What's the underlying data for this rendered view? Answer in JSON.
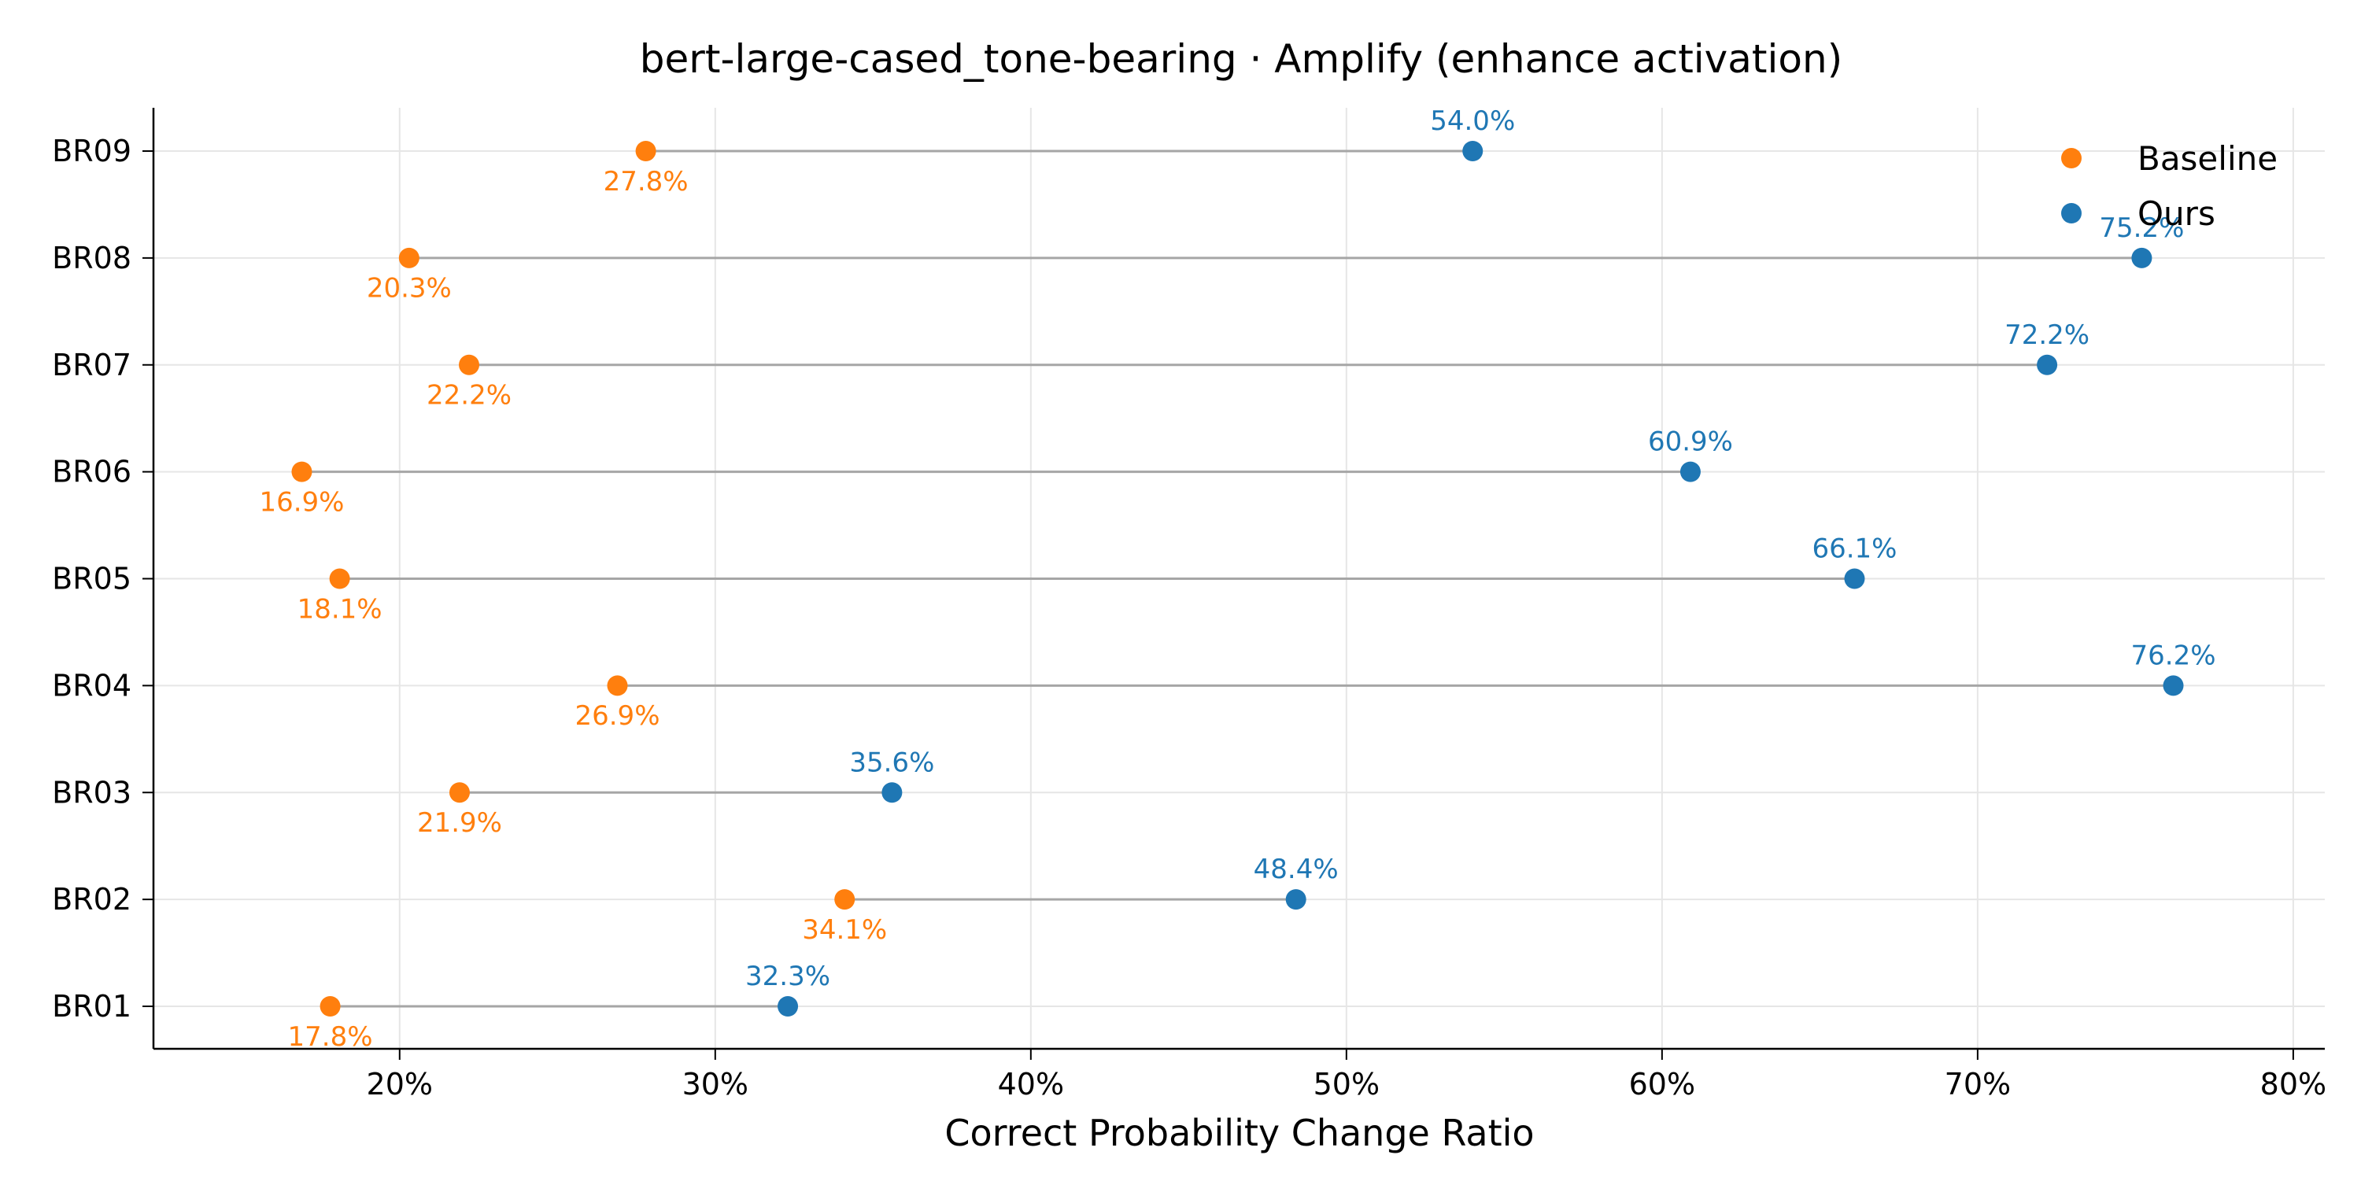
{
  "chart_data": {
    "type": "dumbbell",
    "title": "bert-large-cased_tone-bearing · Amplify (enhance activation)",
    "xlabel": "Correct Probability Change Ratio",
    "xlim": [
      12.2,
      81.0
    ],
    "xticks": [
      20,
      30,
      40,
      50,
      60,
      70,
      80
    ],
    "xtick_labels": [
      "20%",
      "30%",
      "40%",
      "50%",
      "60%",
      "70%",
      "80%"
    ],
    "grid": true,
    "legend_position": "top-right",
    "categories": [
      "BR01",
      "BR02",
      "BR03",
      "BR04",
      "BR05",
      "BR06",
      "BR07",
      "BR08",
      "BR09"
    ],
    "series": [
      {
        "name": "Baseline",
        "color": "#ff7f0e",
        "values": [
          17.8,
          34.1,
          21.9,
          26.9,
          18.1,
          16.9,
          22.2,
          20.3,
          27.8
        ],
        "labels": [
          "17.8%",
          "34.1%",
          "21.9%",
          "26.9%",
          "18.1%",
          "16.9%",
          "22.2%",
          "20.3%",
          "27.8%"
        ]
      },
      {
        "name": "Ours",
        "color": "#1f77b4",
        "values": [
          32.3,
          48.4,
          35.6,
          76.2,
          66.1,
          60.9,
          72.2,
          75.2,
          54.0
        ],
        "labels": [
          "32.3%",
          "48.4%",
          "35.6%",
          "76.2%",
          "66.1%",
          "60.9%",
          "72.2%",
          "75.2%",
          "54.0%"
        ]
      }
    ]
  }
}
